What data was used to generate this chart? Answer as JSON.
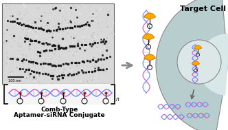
{
  "title": "Target Cell",
  "subtitle_line1": "Comb-Type",
  "subtitle_line2": "Aptamer-siRNA Conjugate",
  "bg_color": "#ffffff",
  "cell_fill": "#b8cece",
  "cell_gradient_light": "#d8e8e8",
  "arrow_color": "#888888",
  "text_color": "#000000",
  "dna_color1": "#cc55cc",
  "dna_color2": "#6688ff",
  "aptamer_fill": "#ffaa00",
  "aptamer_edge": "#cc7700",
  "stem_color": "#111111",
  "loop_color": "#333333",
  "scale_bar_text": "100 nm",
  "em_bg_light": "#e0e0e0",
  "em_bg_dark": "#b8b8b8",
  "rung_color": "#555555",
  "dot_dark": "#111111",
  "dot_attach": "#cc0000",
  "inner_circle_fill": "#dce8e8",
  "inner_circle_edge": "#777777"
}
